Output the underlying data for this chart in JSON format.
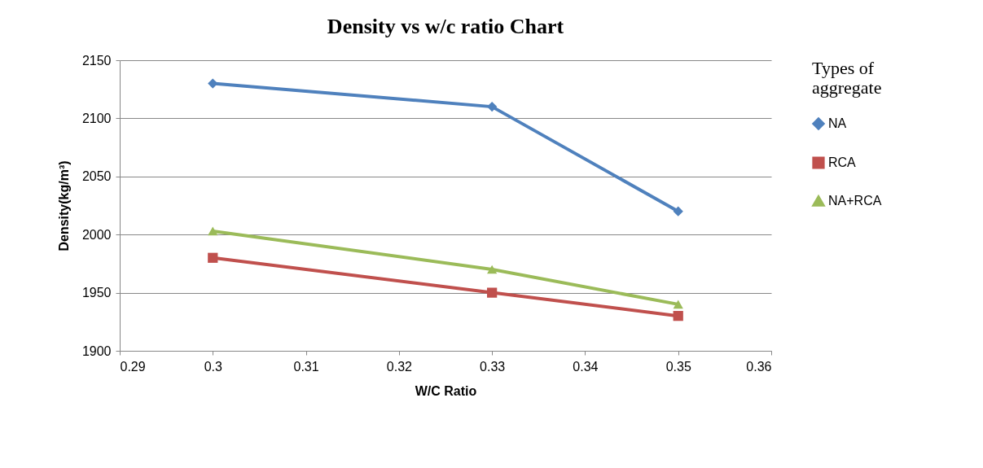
{
  "chart_data": {
    "type": "line",
    "title": "Density vs w/c ratio  Chart",
    "xlabel": "W/C   Ratio",
    "ylabel": "Density(kg/m³)",
    "legend_title": "Types of aggregate",
    "x": [
      0.3,
      0.33,
      0.35
    ],
    "series": [
      {
        "name": "NA",
        "color": "#4f81bd",
        "marker": "diamond",
        "values": [
          2130,
          2110,
          2020
        ]
      },
      {
        "name": "RCA",
        "color": "#c0504d",
        "marker": "square",
        "values": [
          1980,
          1950,
          1930
        ]
      },
      {
        "name": "NA+RCA",
        "color": "#9bbb59",
        "marker": "triangle",
        "values": [
          2003,
          1970,
          1940
        ]
      }
    ],
    "xlim": [
      0.29,
      0.36
    ],
    "xticks": [
      0.29,
      0.3,
      0.31,
      0.32,
      0.33,
      0.34,
      0.35,
      0.36
    ],
    "ylim": [
      1900,
      2150
    ],
    "yticks": [
      1900,
      1950,
      2000,
      2050,
      2100,
      2150
    ],
    "grid": "y",
    "legend": "right",
    "line_style": "solid"
  }
}
